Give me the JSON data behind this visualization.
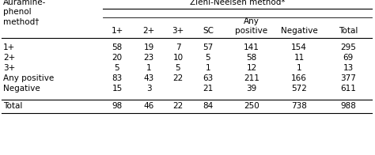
{
  "title_top": "Ziehl-Neelsen method*",
  "col_headers_line2": [
    "1+",
    "2+",
    "3+",
    "SC",
    "positive",
    "Negative",
    "Total"
  ],
  "row_labels": [
    "1+",
    "2+",
    "3+",
    "Any positive",
    "Negative",
    "Total"
  ],
  "row_data": [
    [
      "58",
      "19",
      "7",
      "57",
      "141",
      "154",
      "295"
    ],
    [
      "20",
      "23",
      "10",
      "5",
      "58",
      "11",
      "69"
    ],
    [
      "5",
      "1",
      "5",
      "1",
      "12",
      "1",
      "13"
    ],
    [
      "83",
      "43",
      "22",
      "63",
      "211",
      "166",
      "377"
    ],
    [
      "15",
      "3",
      "",
      "21",
      "39",
      "572",
      "611"
    ],
    [
      "98",
      "46",
      "22",
      "84",
      "250",
      "738",
      "988"
    ]
  ],
  "background_color": "#ffffff",
  "text_color": "#000000",
  "font_size": 7.5
}
